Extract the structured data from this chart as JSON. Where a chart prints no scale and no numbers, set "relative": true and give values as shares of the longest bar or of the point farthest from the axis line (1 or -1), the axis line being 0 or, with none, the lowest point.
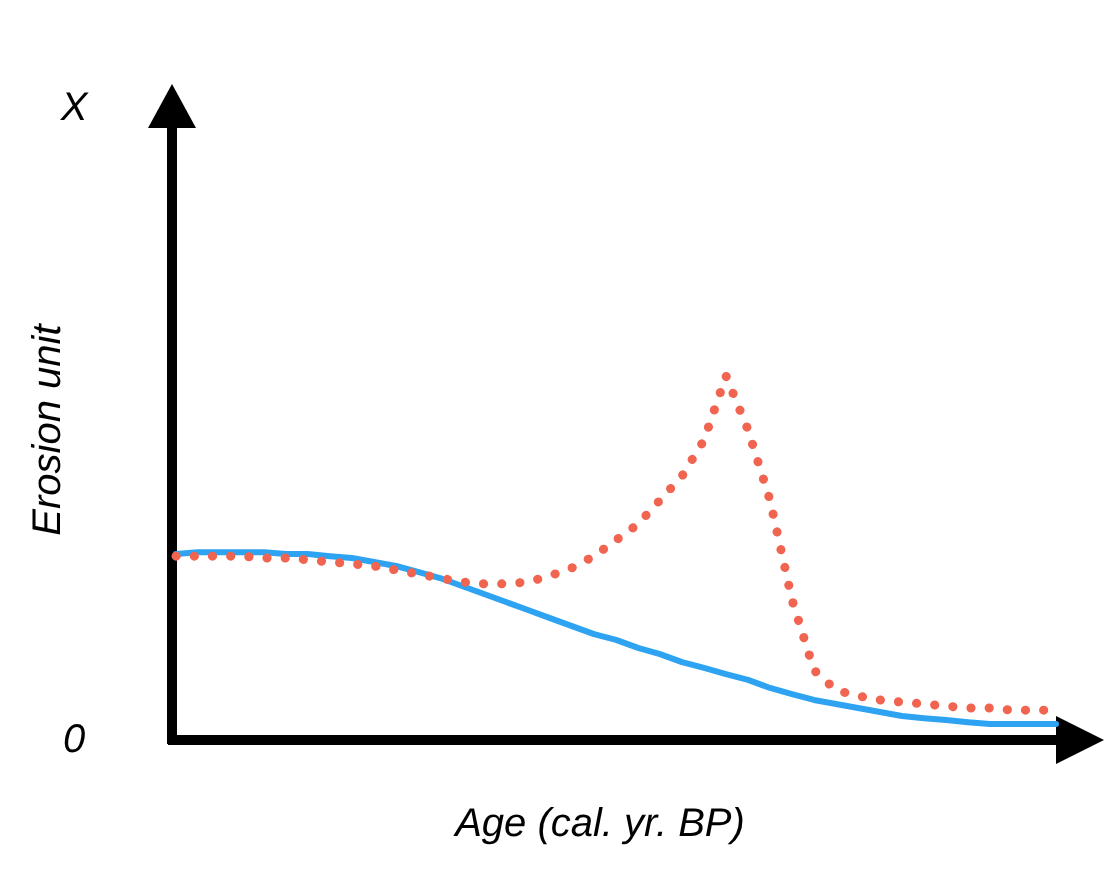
{
  "chart_data": {
    "type": "line",
    "relative": true,
    "xlabel": "Age (cal. yr. BP)",
    "ylabel": "Erosion unit",
    "annotations": [
      "X",
      "0"
    ],
    "marker": "none",
    "categories": [
      null,
      null,
      null,
      null,
      null,
      null,
      null,
      null,
      null,
      null,
      null,
      null,
      null,
      null,
      null,
      null,
      null,
      null,
      null,
      null,
      null,
      null,
      null,
      null,
      null,
      null,
      null,
      null,
      null,
      null,
      null,
      null,
      null,
      null,
      null,
      null,
      null,
      null,
      null,
      null,
      null
    ],
    "series": [
      {
        "color": "#2ea3f2",
        "line_style": "solid",
        "values": [
          0.511,
          0.516,
          0.516,
          0.516,
          0.516,
          0.511,
          0.511,
          0.505,
          0.5,
          0.489,
          0.478,
          0.462,
          0.445,
          0.423,
          0.401,
          0.379,
          0.357,
          0.335,
          0.313,
          0.291,
          0.275,
          0.253,
          0.236,
          0.214,
          0.198,
          0.181,
          0.165,
          0.143,
          0.126,
          0.11,
          0.099,
          0.088,
          0.077,
          0.066,
          0.06,
          0.055,
          0.049,
          0.044,
          0.044,
          0.044,
          0.044
        ]
      },
      {
        "color": "#f06450",
        "line_style": "dotted",
        "values": [
          0.505,
          0.505,
          0.505,
          0.505,
          0.5,
          0.5,
          0.495,
          0.489,
          0.484,
          0.478,
          0.467,
          0.456,
          0.445,
          0.434,
          0.429,
          0.429,
          0.434,
          0.451,
          0.473,
          0.505,
          0.549,
          0.593,
          0.659,
          0.725,
          0.824,
          1,
          0.852,
          0.659,
          0.385,
          0.192,
          0.137,
          0.121,
          0.11,
          0.104,
          0.099,
          0.093,
          0.088,
          0.088,
          0.082,
          0.082,
          0.082
        ]
      }
    ]
  }
}
